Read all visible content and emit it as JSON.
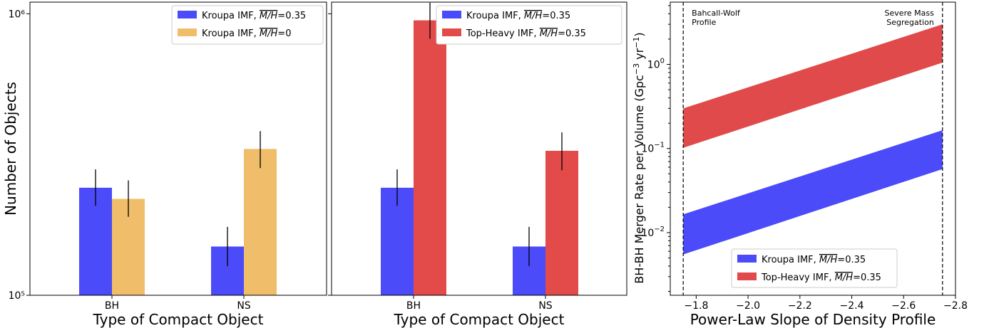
{
  "chart_data": [
    {
      "type": "bar",
      "categories": [
        "BH",
        "NS"
      ],
      "xlabel": "Type of Compact Object",
      "ylabel": "Number of Objects",
      "yscale": "log",
      "ylim": [
        100000,
        1100000
      ],
      "yticks": [
        {
          "value": 100000,
          "label": "10⁵"
        },
        {
          "value": 1000000,
          "label": "10⁶"
        }
      ],
      "legend_position": "top-right",
      "series": [
        {
          "name": "Kroupa IMF, [M/H]=0.35",
          "label_base": "Kroupa IMF, ",
          "label_over": "M/H",
          "label_tail": "=0.35",
          "color": "#4b4bfa",
          "values": [
            241000,
            149000
          ],
          "err": [
            [
              208000,
              280000
            ],
            [
              127000,
              175000
            ]
          ]
        },
        {
          "name": "Kroupa IMF, [M/H]=0",
          "label_base": "Kroupa IMF, ",
          "label_over": "M/H",
          "label_tail": "=0",
          "color": "#f0be6a",
          "values": [
            220000,
            331000
          ],
          "err": [
            [
              190000,
              256000
            ],
            [
              283000,
              383000
            ]
          ]
        }
      ]
    },
    {
      "type": "bar",
      "categories": [
        "BH",
        "NS"
      ],
      "xlabel": "Type of Compact Object",
      "yscale": "log",
      "ylim": [
        100000,
        1100000
      ],
      "legend_position": "top-right",
      "series": [
        {
          "name": "Kroupa IMF, [M/H]=0.35",
          "label_base": "Kroupa IMF, ",
          "label_over": "M/H",
          "label_tail": "=0.35",
          "color": "#4b4bfa",
          "values": [
            241000,
            149000
          ],
          "err": [
            [
              208000,
              280000
            ],
            [
              127000,
              175000
            ]
          ]
        },
        {
          "name": "Top-Heavy IMF, [M/H]=0.35",
          "label_base": "Top-Heavy IMF, ",
          "label_over": "M/H",
          "label_tail": "=0.35",
          "color": "#e34a4a",
          "values": [
            948000,
            326000
          ],
          "err": [
            [
              815000,
              1095000
            ],
            [
              278000,
              379000
            ]
          ]
        }
      ]
    },
    {
      "type": "area",
      "xlabel": "Power-Law Slope of Density Profile",
      "ylabel": "BH-BH Merger Rate per Volume (Gpc",
      "ylabel_sup1": "−3",
      "ylabel_mid": " yr",
      "ylabel_sup2": "−1",
      "ylabel_end": ")",
      "xlim": [
        -1.7,
        -2.8
      ],
      "ylim": [
        0.0018,
        5.5
      ],
      "yscale": "log",
      "xticks": [
        -1.8,
        -2.0,
        -2.2,
        -2.4,
        -2.6,
        -2.8
      ],
      "xtick_labels": [
        "−1.8",
        "−2.0",
        "−2.2",
        "−2.4",
        "−2.6",
        "−2.8"
      ],
      "yticks": [
        {
          "value": 0.01,
          "base": "10",
          "exp": "−2"
        },
        {
          "value": 0.1,
          "base": "10",
          "exp": "−1"
        },
        {
          "value": 1,
          "base": "10",
          "exp": "0"
        }
      ],
      "vlines": [
        {
          "x": -1.75,
          "label_lines": [
            "Bahcall-Wolf",
            "Profile"
          ],
          "align": "left"
        },
        {
          "x": -2.75,
          "label_lines": [
            "Severe Mass",
            "Segregation"
          ],
          "align": "right"
        }
      ],
      "legend_position": "lower center",
      "series": [
        {
          "name": "Kroupa IMF, [M/H]=0.35",
          "label_base": "Kroupa IMF, ",
          "label_over": "M/H",
          "label_tail": "=0.35",
          "color": "#4b4bfa",
          "x": [
            -1.75,
            -2.75
          ],
          "lower": [
            0.0055,
            0.057
          ],
          "upper": [
            0.0165,
            0.165
          ]
        },
        {
          "name": "Top-Heavy IMF, [M/H]=0.35",
          "label_base": "Top-Heavy IMF, ",
          "label_over": "M/H",
          "label_tail": "=0.35",
          "color": "#e04a4a",
          "x": [
            -1.75,
            -2.75
          ],
          "lower": [
            0.102,
            1.05
          ],
          "upper": [
            0.3,
            3.0
          ]
        }
      ]
    }
  ]
}
